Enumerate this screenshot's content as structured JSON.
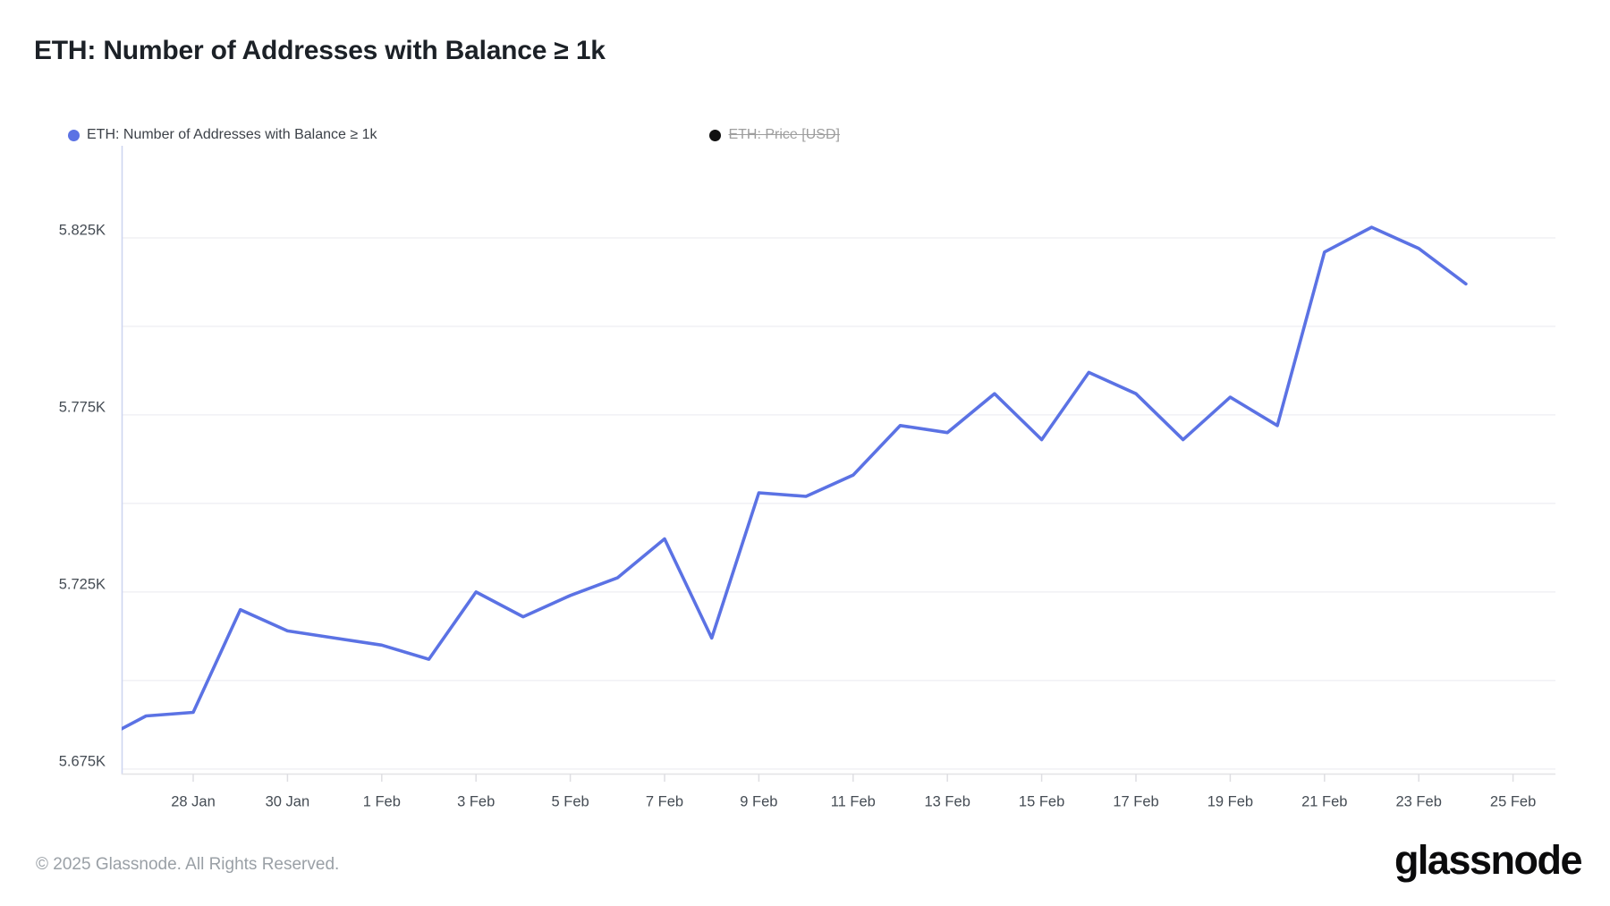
{
  "page": {
    "title": "ETH: Number of Addresses with Balance ≥ 1k",
    "footer_copyright": "© 2025 Glassnode. All Rights Reserved.",
    "brand_logo": "glassnode"
  },
  "legend": {
    "items": [
      {
        "label": "ETH: Number of Addresses with Balance ≥ 1k",
        "color": "#5b72e4",
        "active": true
      },
      {
        "label": "ETH: Price [USD]",
        "color": "#111111",
        "active": false
      }
    ]
  },
  "chart_data": {
    "type": "line",
    "title": "ETH: Number of Addresses with Balance ≥ 1k",
    "unit": "K (thousands of addresses)",
    "grid": "horizontal",
    "legend_position": "top-left",
    "ylim": [
      5.6737,
      5.8505
    ],
    "y_gridline_values": [
      5.825,
      5.8,
      5.775,
      5.75,
      5.725,
      5.7,
      5.675
    ],
    "y_tick_labels": [
      {
        "label": "5.825K",
        "value": 5.825
      },
      {
        "label": "5.775K",
        "value": 5.775
      },
      {
        "label": "5.725K",
        "value": 5.725
      },
      {
        "label": "5.675K",
        "value": 5.675
      }
    ],
    "x_tick_labels": [
      "28 Jan",
      "30 Jan",
      "1 Feb",
      "3 Feb",
      "5 Feb",
      "7 Feb",
      "9 Feb",
      "11 Feb",
      "13 Feb",
      "15 Feb",
      "17 Feb",
      "19 Feb",
      "21 Feb",
      "23 Feb",
      "25 Feb"
    ],
    "series": [
      {
        "name": "ETH: Number of Addresses with Balance ≥ 1k",
        "color": "#5b72e4",
        "x": [
          "26 Jan",
          "27 Jan",
          "28 Jan",
          "29 Jan",
          "30 Jan",
          "31 Jan",
          "1 Feb",
          "2 Feb",
          "3 Feb",
          "4 Feb",
          "5 Feb",
          "6 Feb",
          "7 Feb",
          "8 Feb",
          "9 Feb",
          "10 Feb",
          "11 Feb",
          "12 Feb",
          "13 Feb",
          "14 Feb",
          "15 Feb",
          "16 Feb",
          "17 Feb",
          "18 Feb",
          "19 Feb",
          "20 Feb",
          "21 Feb",
          "22 Feb",
          "23 Feb",
          "24 Feb"
        ],
        "values": [
          5.683,
          5.69,
          5.691,
          5.72,
          5.714,
          5.712,
          5.71,
          5.706,
          5.725,
          5.718,
          5.724,
          5.729,
          5.74,
          5.712,
          5.753,
          5.752,
          5.758,
          5.772,
          5.77,
          5.781,
          5.768,
          5.787,
          5.781,
          5.768,
          5.78,
          5.772,
          5.821,
          5.828,
          5.822,
          5.812
        ]
      },
      {
        "name": "ETH: Price [USD]",
        "color": "#111111",
        "disabled": true,
        "values": []
      }
    ]
  }
}
